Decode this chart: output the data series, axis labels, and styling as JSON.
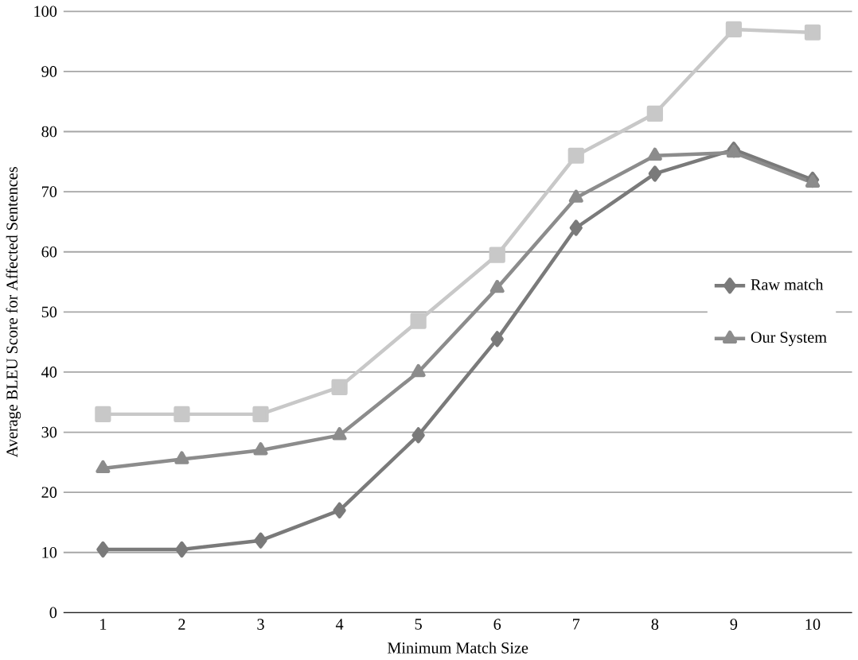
{
  "chart_data": {
    "type": "line",
    "xlabel": "Minimum Match Size",
    "ylabel": "Average BLEU Score for Affected Sentences",
    "categories": [
      "1",
      "2",
      "3",
      "4",
      "5",
      "6",
      "7",
      "8",
      "9",
      "10"
    ],
    "series": [
      {
        "name": "Raw match",
        "color": "#7a7a7a",
        "marker": "diamond",
        "values": [
          10.5,
          10.5,
          12,
          17,
          29.5,
          45.5,
          64,
          73,
          77,
          72
        ]
      },
      {
        "color": "#c8c8c8",
        "marker": "square",
        "values": [
          33,
          33,
          33,
          37.5,
          48.5,
          59.5,
          76,
          83,
          97,
          96.5
        ]
      },
      {
        "name": "Our System",
        "color": "#8c8c8c",
        "marker": "triangle",
        "values": [
          24,
          25.5,
          27,
          29.5,
          40,
          54,
          69,
          76,
          76.5,
          71.5
        ]
      }
    ],
    "ylim": [
      0,
      100
    ],
    "yticks": [
      0,
      10,
      20,
      30,
      40,
      50,
      60,
      70,
      80,
      90,
      100
    ],
    "grid": "y",
    "legend": "right"
  }
}
